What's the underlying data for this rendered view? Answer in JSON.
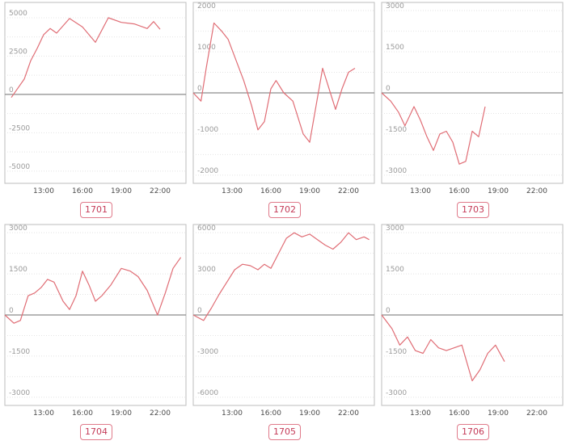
{
  "chart_data": [
    {
      "type": "line",
      "label": "1701",
      "ylim": [
        -5800,
        6000
      ],
      "yticks": [
        5000,
        2500,
        0,
        -2500,
        -5000
      ],
      "xlim": [
        10,
        24
      ],
      "xticks": [
        "13:00",
        "16:00",
        "19:00",
        "22:00"
      ],
      "xtick_values": [
        13,
        16,
        19,
        22
      ],
      "x": [
        10.5,
        11,
        11.5,
        12,
        12.5,
        13,
        13.5,
        14,
        15,
        16,
        17,
        18,
        19,
        20,
        21,
        21.5,
        22
      ],
      "y": [
        -200,
        400,
        1000,
        2200,
        3000,
        3900,
        4300,
        4000,
        4950,
        4400,
        3400,
        5000,
        4700,
        4600,
        4300,
        4750,
        4250
      ]
    },
    {
      "type": "line",
      "label": "1702",
      "ylim": [
        -2200,
        2200
      ],
      "yticks": [
        2000,
        1000,
        0,
        -1000,
        -2000
      ],
      "xlim": [
        10,
        24
      ],
      "xticks": [
        "13:00",
        "16:00",
        "19:00",
        "22:00"
      ],
      "xtick_values": [
        13,
        16,
        19,
        22
      ],
      "x": [
        10,
        10.6,
        11,
        11.6,
        12.2,
        12.7,
        13.3,
        13.9,
        14.5,
        15,
        15.5,
        16,
        16.4,
        17,
        17.7,
        18.5,
        19,
        19.5,
        20,
        20.5,
        21,
        21.5,
        22,
        22.5
      ],
      "y": [
        0,
        -200,
        600,
        1700,
        1500,
        1300,
        800,
        300,
        -300,
        -900,
        -700,
        100,
        300,
        0,
        -200,
        -1000,
        -1200,
        -300,
        600,
        100,
        -400,
        100,
        500,
        600
      ]
    },
    {
      "type": "line",
      "label": "1703",
      "ylim": [
        -3300,
        3300
      ],
      "yticks": [
        3000,
        1500,
        0,
        -1500,
        -3000
      ],
      "xlim": [
        10,
        24
      ],
      "xticks": [
        "13:00",
        "16:00",
        "19:00",
        "22:00"
      ],
      "xtick_values": [
        13,
        16,
        19,
        22
      ],
      "x": [
        10,
        10.7,
        11.3,
        11.8,
        12.5,
        13,
        13.5,
        14,
        14.5,
        15,
        15.5,
        16,
        16.5,
        17,
        17.5,
        18
      ],
      "y": [
        0,
        -300,
        -700,
        -1200,
        -500,
        -1000,
        -1600,
        -2100,
        -1500,
        -1400,
        -1800,
        -2600,
        -2500,
        -1400,
        -1600,
        -500
      ]
    },
    {
      "type": "line",
      "label": "1704",
      "ylim": [
        -3300,
        3300
      ],
      "yticks": [
        3000,
        1500,
        0,
        -1500,
        -3000
      ],
      "xlim": [
        10,
        24
      ],
      "xticks": [
        "13:00",
        "16:00",
        "19:00",
        "22:00"
      ],
      "xtick_values": [
        13,
        16,
        19,
        22
      ],
      "x": [
        10,
        10.7,
        11.2,
        11.8,
        12.3,
        12.8,
        13.3,
        13.8,
        14.5,
        15,
        15.5,
        16,
        16.5,
        17,
        17.5,
        18.2,
        19,
        19.7,
        20.3,
        21,
        21.8,
        22.4,
        23,
        23.6
      ],
      "y": [
        0,
        -300,
        -200,
        700,
        800,
        1000,
        1300,
        1200,
        500,
        200,
        700,
        1600,
        1100,
        500,
        700,
        1100,
        1700,
        1600,
        1400,
        900,
        0,
        800,
        1700,
        2100
      ]
    },
    {
      "type": "line",
      "label": "1705",
      "ylim": [
        -6600,
        6600
      ],
      "yticks": [
        6000,
        3000,
        0,
        -3000,
        -6000
      ],
      "xlim": [
        10,
        24
      ],
      "xticks": [
        "13:00",
        "16:00",
        "19:00",
        "22:00"
      ],
      "xtick_values": [
        13,
        16,
        19,
        22
      ],
      "x": [
        10,
        10.8,
        11.4,
        12,
        12.6,
        13.2,
        13.8,
        14.4,
        15,
        15.5,
        16,
        16.6,
        17.2,
        17.8,
        18.4,
        19,
        19.6,
        20.2,
        20.8,
        21.4,
        22,
        22.6,
        23.2,
        23.6
      ],
      "y": [
        0,
        -400,
        500,
        1500,
        2400,
        3300,
        3700,
        3600,
        3300,
        3700,
        3400,
        4500,
        5600,
        6000,
        5700,
        5900,
        5500,
        5100,
        4800,
        5300,
        6000,
        5500,
        5700,
        5500
      ]
    },
    {
      "type": "line",
      "label": "1706",
      "ylim": [
        -3300,
        3300
      ],
      "yticks": [
        3000,
        1500,
        0,
        -1500,
        -3000
      ],
      "xlim": [
        10,
        24
      ],
      "xticks": [
        "13:00",
        "16:00",
        "19:00",
        "22:00"
      ],
      "xtick_values": [
        13,
        16,
        19,
        22
      ],
      "x": [
        10,
        10.8,
        11.4,
        12,
        12.6,
        13.2,
        13.8,
        14.4,
        15,
        15.6,
        16.2,
        17,
        17.6,
        18.2,
        18.8,
        19.5
      ],
      "y": [
        0,
        -500,
        -1100,
        -800,
        -1300,
        -1400,
        -900,
        -1200,
        -1300,
        -1200,
        -1100,
        -2400,
        -2000,
        -1400,
        -1100,
        -1700
      ]
    }
  ]
}
